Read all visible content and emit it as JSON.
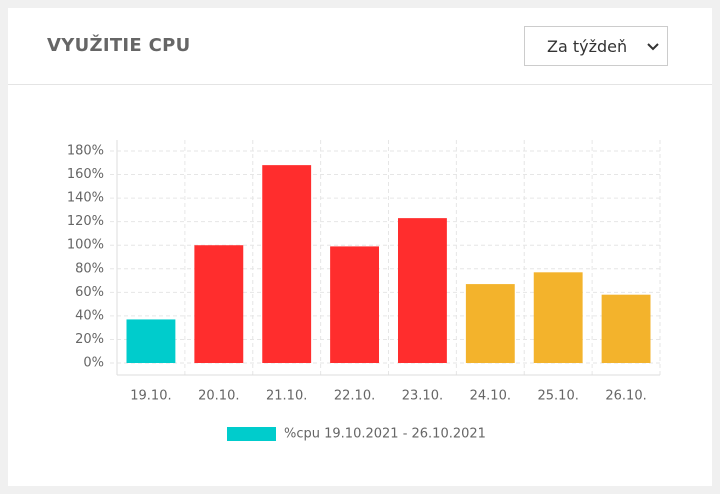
{
  "header": {
    "title": "VYUŽITIE CPU",
    "select": "Za týždeň"
  },
  "chart_data": {
    "type": "bar",
    "categories": [
      "19.10.",
      "20.10.",
      "21.10.",
      "22.10.",
      "23.10.",
      "24.10.",
      "25.10.",
      "26.10."
    ],
    "series": [
      {
        "name": "%cpu 19.10.2021 - 26.10.2021",
        "color": "#00cccc",
        "colors": [
          "#00cccc",
          "#ff2d2d",
          "#ff2d2d",
          "#ff2d2d",
          "#ff2d2d",
          "#f3b32c",
          "#f3b32c",
          "#f3b32c"
        ],
        "values": [
          37,
          100,
          168,
          99,
          123,
          67,
          77,
          58
        ]
      }
    ],
    "ylim": [
      0,
      180
    ],
    "yticks": [
      {
        "value": 0,
        "label": "0%"
      },
      {
        "value": 20,
        "label": "20%"
      },
      {
        "value": 40,
        "label": "40%"
      },
      {
        "value": 60,
        "label": "60%"
      },
      {
        "value": 80,
        "label": "80%"
      },
      {
        "value": 100,
        "label": "100%"
      },
      {
        "value": 120,
        "label": "120%"
      },
      {
        "value": 140,
        "label": "140%"
      },
      {
        "value": 160,
        "label": "160%"
      },
      {
        "value": 180,
        "label": "180%"
      }
    ],
    "grid": true
  }
}
